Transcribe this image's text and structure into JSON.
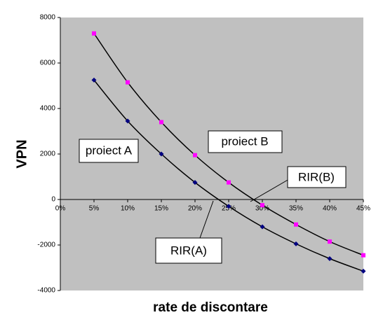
{
  "chart_data": {
    "type": "scatter",
    "x_label": "rate de discontare",
    "y_label": "VPN",
    "x": [
      5,
      10,
      15,
      20,
      25,
      30,
      35,
      40,
      45
    ],
    "series": [
      {
        "name": "proiect A",
        "color": "#000080",
        "marker": "diamond",
        "values": [
          5250,
          3450,
          2000,
          750,
          -300,
          -1200,
          -1950,
          -2600,
          -3150
        ]
      },
      {
        "name": "proiect B",
        "color": "#ff00ff",
        "marker": "square",
        "values": [
          7300,
          5150,
          3400,
          1950,
          750,
          -250,
          -1100,
          -1850,
          -2450
        ]
      }
    ],
    "annotations": [
      "RIR(A)",
      "RIR(B)"
    ],
    "xlim": [
      0,
      45
    ],
    "xticks": [
      {
        "value": 0,
        "label": "0%"
      },
      {
        "value": 5,
        "label": "5%"
      },
      {
        "value": 10,
        "label": "10%"
      },
      {
        "value": 15,
        "label": "15%"
      },
      {
        "value": 20,
        "label": "20%"
      },
      {
        "value": 25,
        "label": "25%"
      },
      {
        "value": 30,
        "label": "30%"
      },
      {
        "value": 35,
        "label": "35%"
      },
      {
        "value": 40,
        "label": "40%"
      },
      {
        "value": 45,
        "label": "45%"
      }
    ],
    "ylim": [
      -4000,
      8000
    ],
    "yticks": [
      -4000,
      -2000,
      0,
      2000,
      4000,
      6000,
      8000
    ],
    "trendline": true,
    "grid": false
  }
}
